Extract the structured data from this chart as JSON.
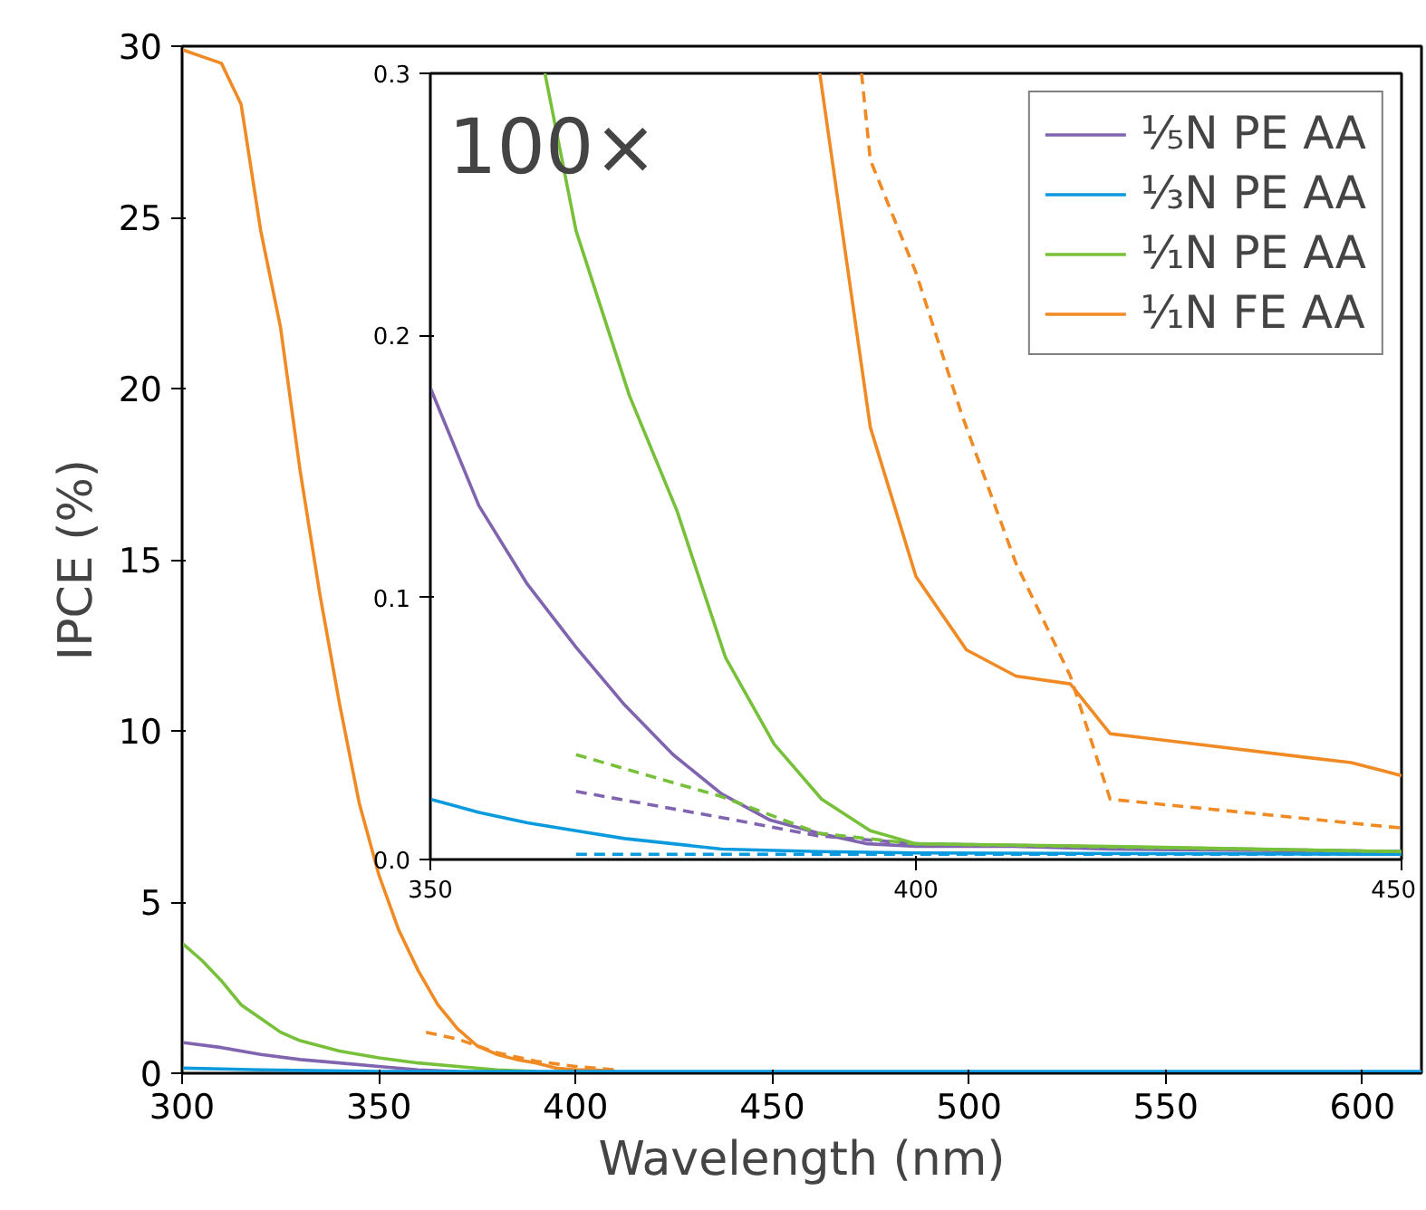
{
  "chart_data": [
    {
      "type": "line",
      "xlabel": "Wavelength (nm)",
      "ylabel": "IPCE (%)",
      "xlim": [
        300,
        615
      ],
      "ylim": [
        0,
        30
      ],
      "xticks": [
        300,
        350,
        400,
        450,
        500,
        550,
        600
      ],
      "yticks": [
        0,
        5,
        10,
        15,
        20,
        25,
        30
      ],
      "series": [
        {
          "color": "#f08a24",
          "line_style": "solid",
          "x": [
            300,
            305,
            310,
            315,
            320,
            325,
            330,
            335,
            340,
            345,
            350,
            355,
            360,
            365,
            370,
            375,
            380,
            385,
            390,
            395,
            400,
            405,
            410
          ],
          "values": [
            29.9,
            29.7,
            29.5,
            28.3,
            24.6,
            21.8,
            17.6,
            14.0,
            10.8,
            7.9,
            5.8,
            4.2,
            3.0,
            2.0,
            1.3,
            0.8,
            0.55,
            0.4,
            0.3,
            0.15,
            0.1,
            0.1,
            0.05
          ]
        },
        {
          "color": "#f08a24",
          "line_style": "dashed",
          "x": [
            362,
            370,
            380,
            390,
            400,
            410
          ],
          "values": [
            1.2,
            1.0,
            0.6,
            0.35,
            0.2,
            0.1
          ]
        },
        {
          "color": "#77c13a",
          "line_style": "solid",
          "x": [
            300,
            305,
            310,
            315,
            320,
            325,
            330,
            335,
            340,
            345,
            350,
            360,
            370,
            380,
            390
          ],
          "values": [
            3.8,
            3.3,
            2.7,
            2.0,
            1.6,
            1.2,
            0.95,
            0.8,
            0.65,
            0.55,
            0.45,
            0.3,
            0.2,
            0.1,
            0.05
          ]
        },
        {
          "color": "#8064b0",
          "line_style": "solid",
          "x": [
            300,
            310,
            320,
            330,
            340,
            350,
            360,
            370
          ],
          "values": [
            0.9,
            0.75,
            0.55,
            0.4,
            0.3,
            0.2,
            0.1,
            0.05
          ]
        },
        {
          "color": "#0b9ade",
          "line_style": "solid",
          "x": [
            300,
            320,
            350,
            380,
            400,
            450,
            615
          ],
          "values": [
            0.15,
            0.1,
            0.05,
            0.05,
            0.05,
            0.05,
            0.05
          ]
        }
      ]
    },
    {
      "type": "line",
      "annotations": [
        "100×"
      ],
      "legend": "top right",
      "xlim": [
        350,
        450
      ],
      "ylim": [
        0,
        0.3
      ],
      "xticks": [
        350,
        400,
        450
      ],
      "yticks": [
        {
          "value": 0,
          "label": "0.0"
        },
        0.1,
        0.2,
        0.3
      ],
      "series": [
        {
          "name": "¹⁄₅N PE AA",
          "color": "#8064b0",
          "line_style": "solid",
          "x": [
            350,
            355,
            360,
            365,
            370,
            375,
            380,
            385,
            390,
            395,
            400,
            410,
            420,
            450
          ],
          "values": [
            0.18,
            0.135,
            0.105,
            0.081,
            0.059,
            0.04,
            0.025,
            0.015,
            0.01,
            0.006,
            0.005,
            0.005,
            0.004,
            0.003
          ]
        },
        {
          "color": "#8064b0",
          "line_style": "dashed",
          "x": [
            365,
            380,
            390,
            400,
            450
          ],
          "values": [
            0.026,
            0.016,
            0.009,
            0.006,
            0.003
          ]
        },
        {
          "name": "¹⁄₃N PE AA",
          "color": "#0b9ade",
          "line_style": "solid",
          "x": [
            350,
            355,
            360,
            365,
            370,
            375,
            380,
            390,
            400,
            450
          ],
          "values": [
            0.023,
            0.018,
            0.014,
            0.011,
            0.008,
            0.006,
            0.004,
            0.003,
            0.0025,
            0.002
          ]
        },
        {
          "color": "#0b9ade",
          "line_style": "dashed",
          "x": [
            365,
            450
          ],
          "values": [
            0.002,
            0.002
          ]
        },
        {
          "name": "¹⁄₁N PE AA",
          "color": "#77c13a",
          "line_style": "solid",
          "x": [
            361.8,
            365,
            370.5,
            375.4,
            380.4,
            385.4,
            390.3,
            395.3,
            400,
            420,
            450
          ],
          "values": [
            0.3,
            0.24,
            0.177,
            0.133,
            0.077,
            0.044,
            0.023,
            0.011,
            0.006,
            0.005,
            0.003
          ]
        },
        {
          "color": "#77c13a",
          "line_style": "dashed",
          "x": [
            365,
            380,
            390,
            400,
            450
          ],
          "values": [
            0.04,
            0.024,
            0.01,
            0.006,
            0.003
          ]
        },
        {
          "name": "¹⁄₁N FE AA",
          "color": "#f08a24",
          "line_style": "solid",
          "x": [
            390.1,
            395.3,
            400,
            405.2,
            410.3,
            415.9,
            420,
            440.1,
            444.8,
            450
          ],
          "values": [
            0.3,
            0.165,
            0.108,
            0.08,
            0.07,
            0.067,
            0.048,
            0.039,
            0.037,
            0.032
          ]
        },
        {
          "color": "#f08a24",
          "line_style": "dashed",
          "x": [
            394.4,
            395.3,
            400,
            404.7,
            410.3,
            415.9,
            420,
            450
          ],
          "values": [
            0.3,
            0.267,
            0.224,
            0.17,
            0.113,
            0.07,
            0.023,
            0.012
          ]
        }
      ]
    }
  ]
}
